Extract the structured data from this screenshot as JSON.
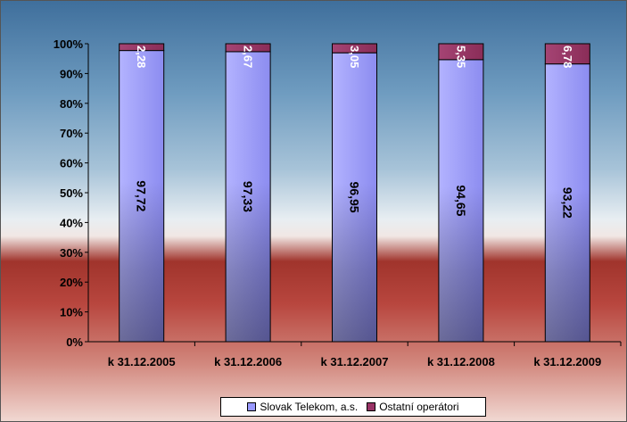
{
  "chart_data": {
    "type": "bar",
    "stacked": true,
    "categories": [
      "k 31.12.2005",
      "k 31.12.2006",
      "k 31.12.2007",
      "k 31.12.2008",
      "k  31.12.2009"
    ],
    "series": [
      {
        "name": "Slovak Telekom, a.s.",
        "values": [
          97.72,
          97.33,
          96.95,
          94.65,
          93.22
        ],
        "labels": [
          "97,72",
          "97,33",
          "96,95",
          "94,65",
          "93,22"
        ],
        "color": "#9999ff"
      },
      {
        "name": "Ostatní operátori",
        "values": [
          2.28,
          2.67,
          3.05,
          5.35,
          6.78
        ],
        "labels": [
          "2,28",
          "2,67",
          "3,05",
          "5,35",
          "6,78"
        ],
        "color": "#993366"
      }
    ],
    "yticks": [
      "0%",
      "10%",
      "20%",
      "30%",
      "40%",
      "50%",
      "60%",
      "70%",
      "80%",
      "90%",
      "100%"
    ],
    "ylim": [
      0,
      100
    ],
    "grid": false,
    "legend_position": "bottom"
  }
}
